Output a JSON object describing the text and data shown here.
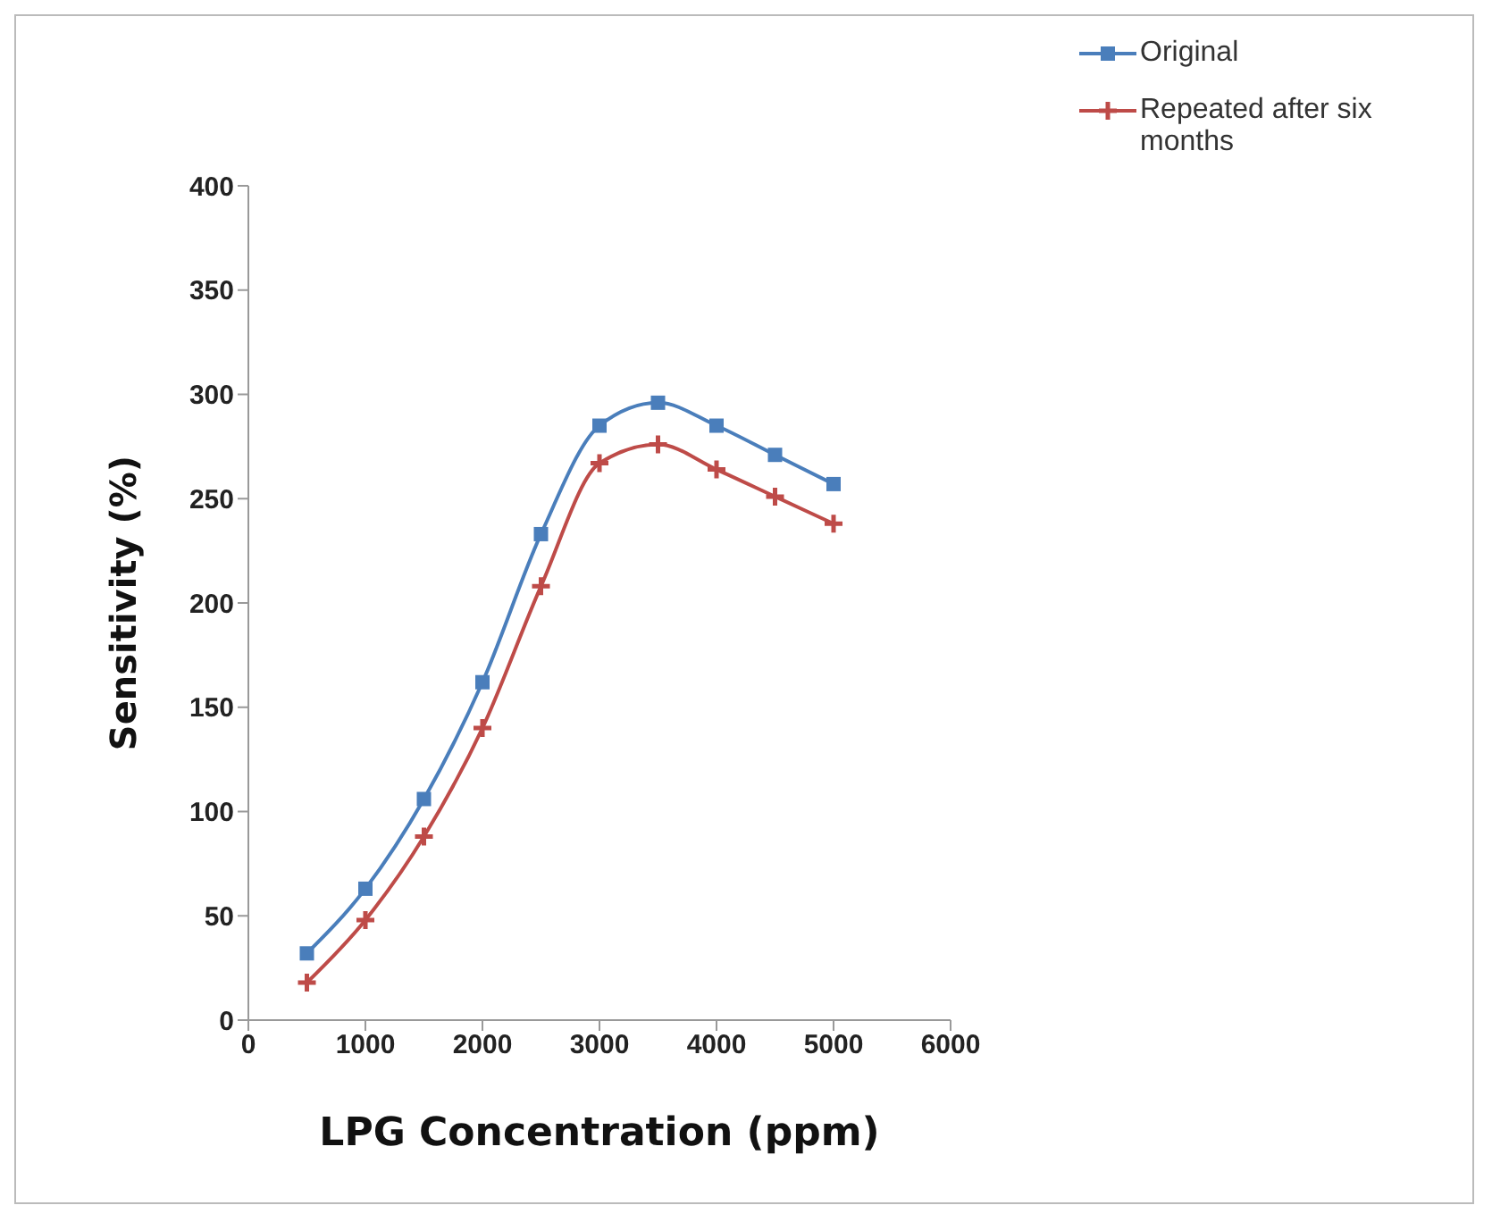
{
  "chart_data": {
    "type": "line",
    "xlabel": "LPG Concentration (ppm)",
    "ylabel": "Sensitivity (%)",
    "x": [
      500,
      1000,
      1500,
      2000,
      2500,
      3000,
      3500,
      4000,
      4500,
      5000
    ],
    "series": [
      {
        "name": "Original",
        "color": "#4a7ebb",
        "marker": "square",
        "values": [
          32,
          63,
          106,
          162,
          233,
          285,
          296,
          285,
          271,
          257
        ]
      },
      {
        "name": "Repeated after six months",
        "color": "#be4b48",
        "marker": "cross",
        "values": [
          18,
          48,
          88,
          140,
          208,
          267,
          276,
          264,
          251,
          238
        ]
      }
    ],
    "xlim": [
      0,
      6000
    ],
    "xticks": [
      0,
      1000,
      2000,
      3000,
      4000,
      5000,
      6000
    ],
    "ylim": [
      0,
      400
    ],
    "yticks": [
      0,
      50,
      100,
      150,
      200,
      250,
      300,
      350,
      400
    ],
    "grid": false,
    "legend": "top right",
    "line_style": "solid"
  }
}
